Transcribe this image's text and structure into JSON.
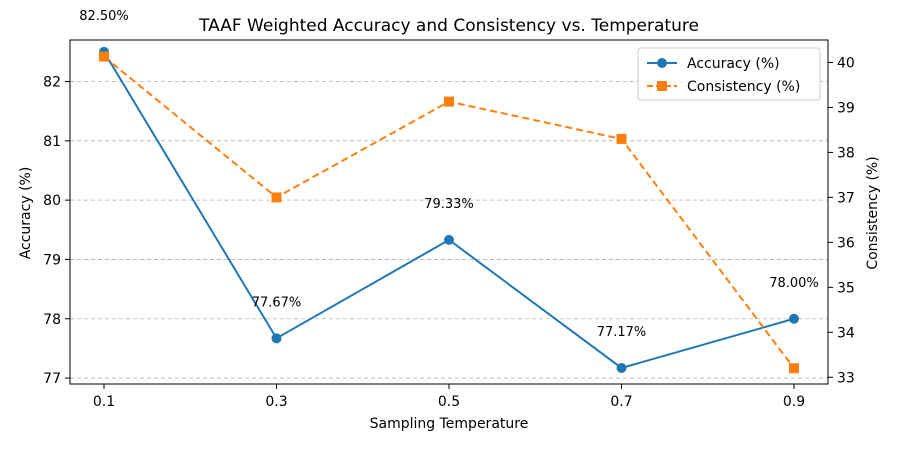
{
  "chart_data": {
    "type": "line",
    "title": "TAAF Weighted Accuracy and Consistency vs. Temperature",
    "xlabel": "Sampling Temperature",
    "ylabel_left": "Accuracy (%)",
    "ylabel_right": "Consistency (%)",
    "categories": [
      "0.1",
      "0.3",
      "0.5",
      "0.7",
      "0.9"
    ],
    "ylim_left": [
      76.9,
      82.7
    ],
    "ylim_right": [
      32.85,
      40.5
    ],
    "yticks_left": [
      77,
      78,
      79,
      80,
      81,
      82
    ],
    "yticks_right": [
      33,
      34,
      35,
      36,
      37,
      38,
      39,
      40
    ],
    "grid": "horizontal-dashed",
    "legend_position": "top-right",
    "series": [
      {
        "name": "Accuracy (%)",
        "axis": "left",
        "color": "#1f77b4",
        "line_style": "solid",
        "marker": "circle",
        "values": [
          82.5,
          77.67,
          79.33,
          77.17,
          78.0
        ],
        "labels": [
          "82.50%",
          "77.67%",
          "79.33%",
          "77.17%",
          "78.00%"
        ]
      },
      {
        "name": "Consistency (%)",
        "axis": "right",
        "color": "#ff7f0e",
        "line_style": "dashed",
        "marker": "square",
        "values": [
          40.13,
          37.0,
          39.13,
          38.3,
          33.2
        ]
      }
    ]
  }
}
